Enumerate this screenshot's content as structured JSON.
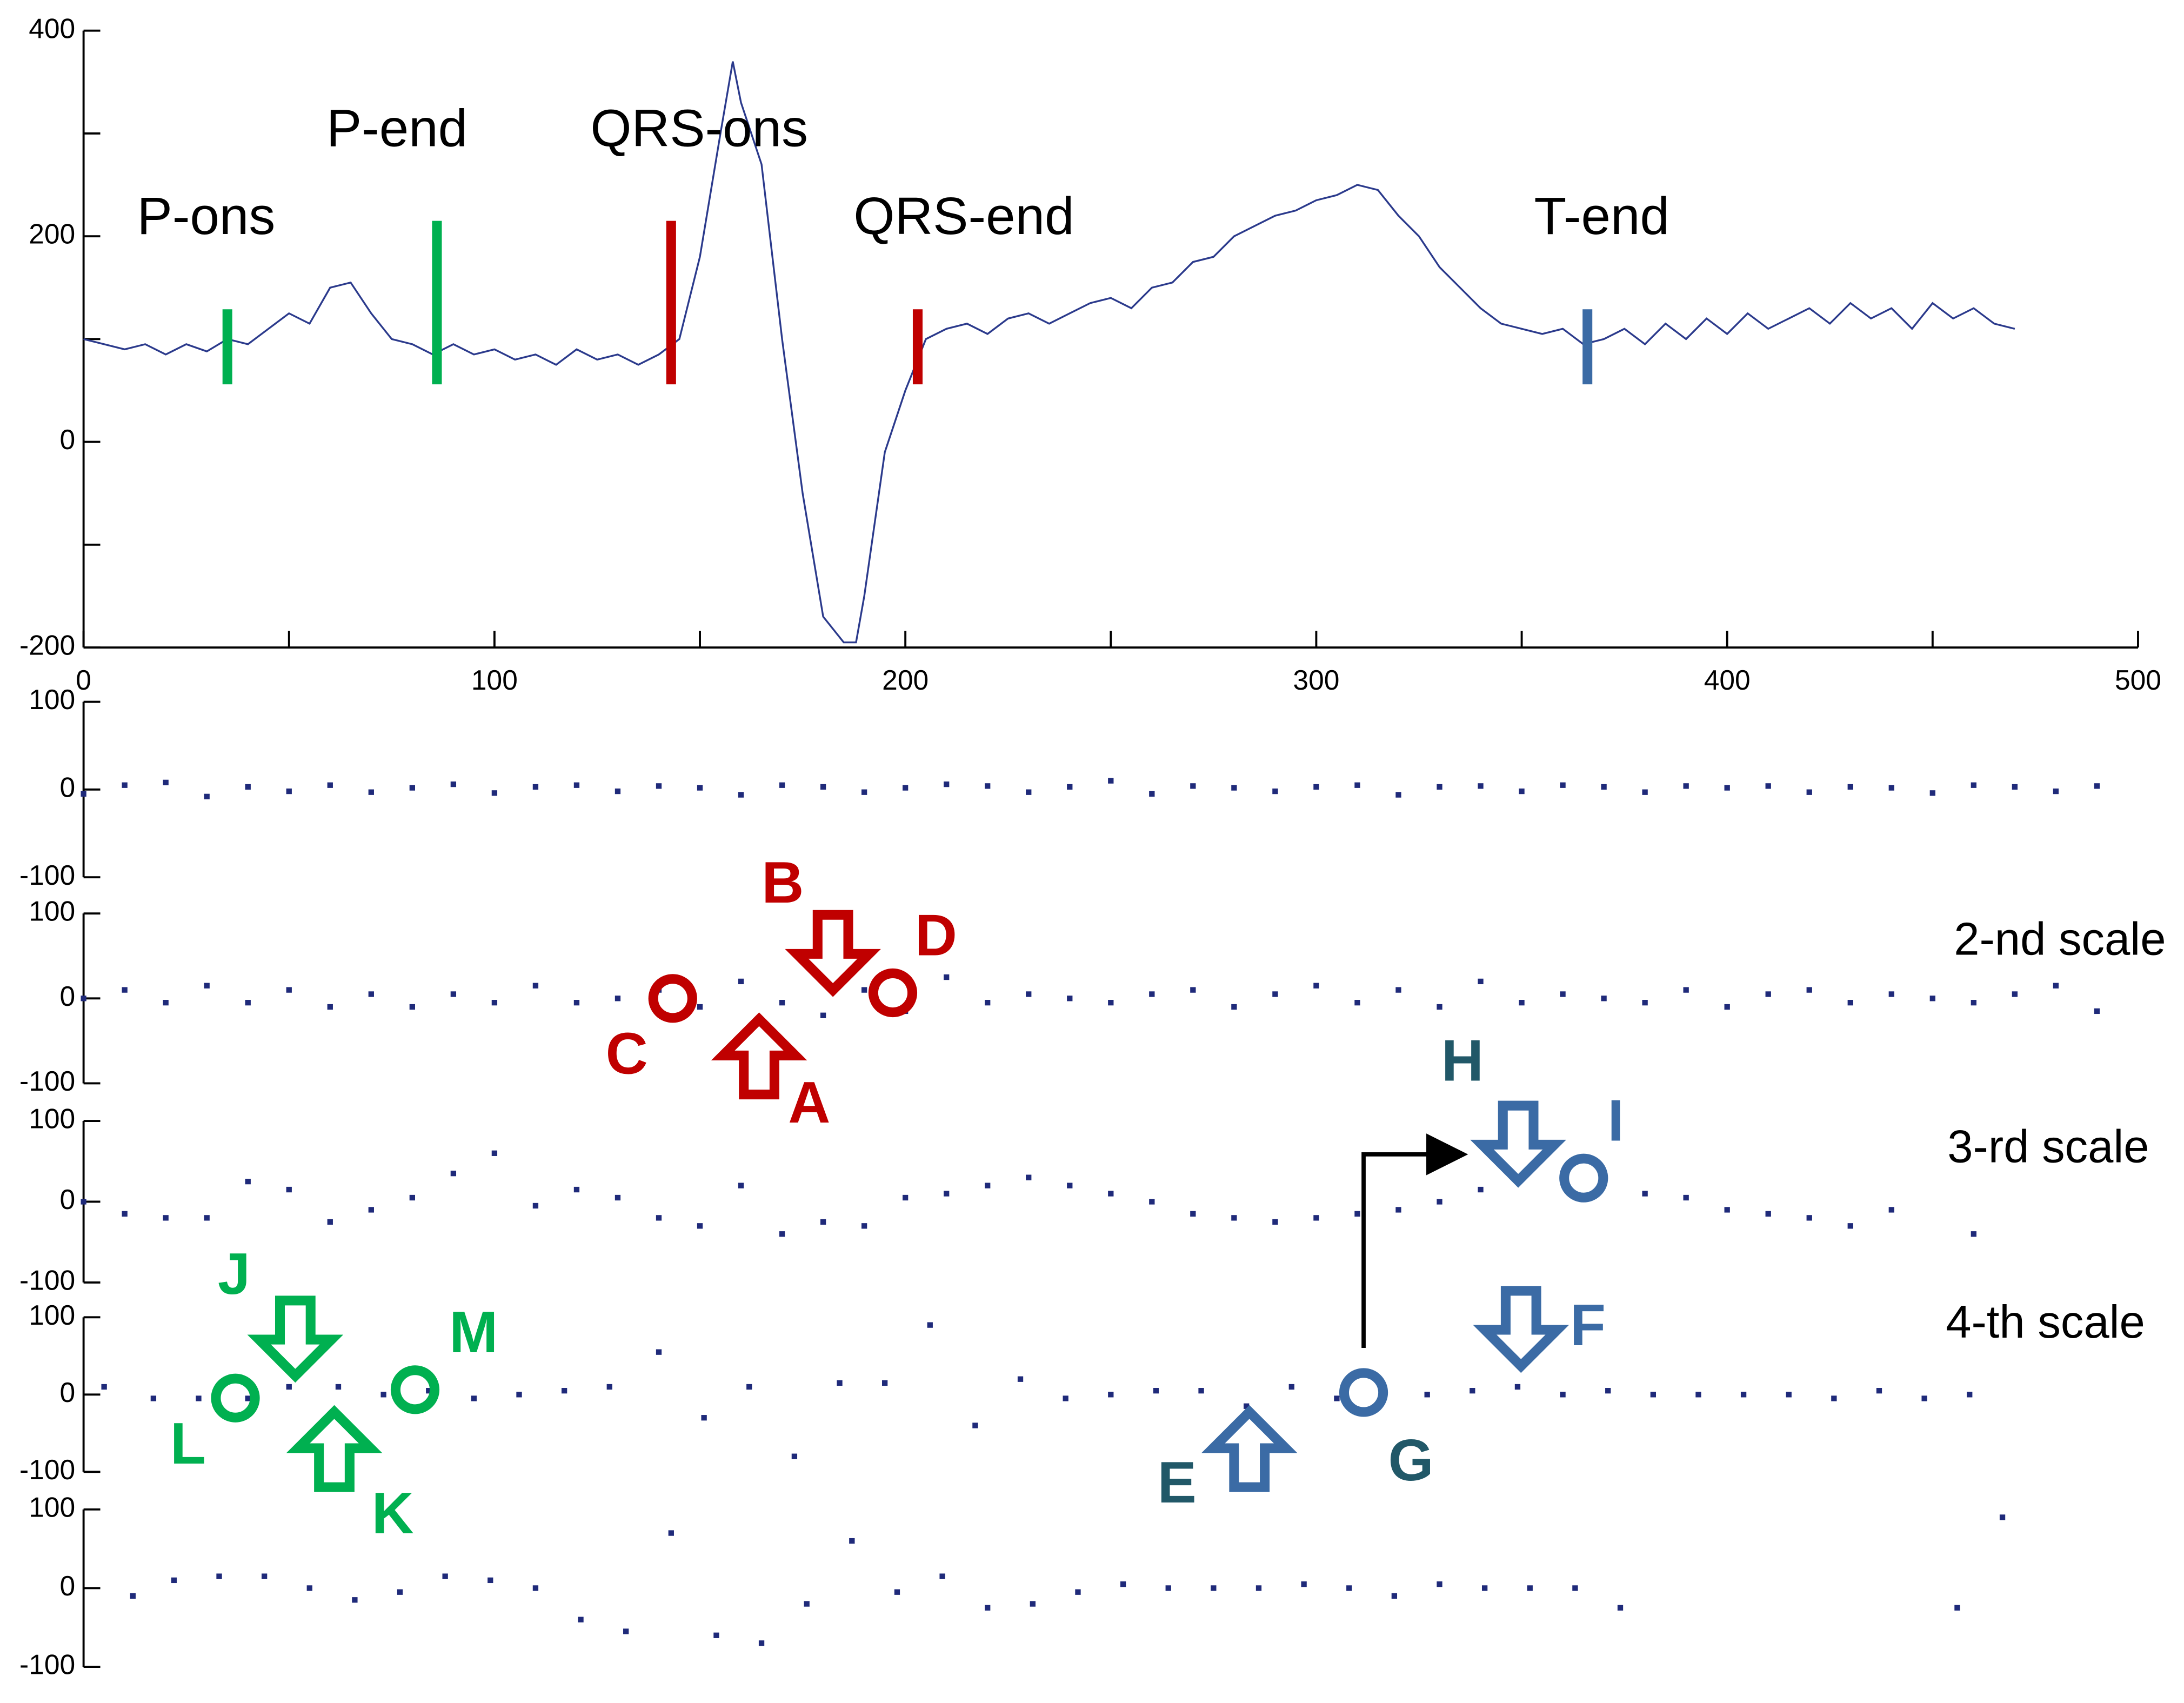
{
  "chart_data": [
    {
      "type": "line",
      "color": "#2b3a8c",
      "x": [
        0,
        5,
        10,
        15,
        20,
        25,
        30,
        35,
        40,
        45,
        50,
        55,
        60,
        65,
        70,
        75,
        80,
        85,
        90,
        95,
        100,
        105,
        110,
        115,
        120,
        125,
        130,
        135,
        140,
        145,
        150,
        155,
        158,
        160,
        165,
        170,
        175,
        180,
        185,
        188,
        190,
        195,
        200,
        205,
        210,
        215,
        220,
        225,
        230,
        235,
        240,
        245,
        250,
        255,
        260,
        265,
        270,
        275,
        280,
        285,
        290,
        295,
        300,
        305,
        310,
        315,
        320,
        325,
        330,
        335,
        340,
        345,
        350,
        355,
        360,
        365,
        370,
        375,
        380,
        385,
        390,
        395,
        400,
        405,
        410,
        415,
        420,
        425,
        430,
        435,
        440,
        445,
        450,
        455,
        460,
        465,
        470
      ],
      "values": [
        100,
        95,
        90,
        95,
        85,
        95,
        88,
        100,
        95,
        110,
        125,
        115,
        150,
        155,
        125,
        100,
        95,
        85,
        95,
        85,
        90,
        80,
        85,
        75,
        90,
        80,
        85,
        75,
        85,
        100,
        180,
        300,
        370,
        330,
        270,
        100,
        -50,
        -170,
        -195,
        -195,
        -150,
        -10,
        50,
        100,
        110,
        115,
        105,
        120,
        125,
        115,
        125,
        135,
        140,
        130,
        150,
        155,
        175,
        180,
        200,
        210,
        220,
        225,
        235,
        240,
        250,
        245,
        220,
        200,
        170,
        150,
        130,
        115,
        110,
        105,
        110,
        95,
        100,
        110,
        95,
        115,
        100,
        120,
        105,
        125,
        110,
        120,
        130,
        115,
        135,
        120,
        130,
        110,
        135,
        120,
        130,
        115,
        110
      ],
      "xlim": [
        0,
        500
      ],
      "ylim": [
        -200,
        400
      ],
      "xticks": [
        0,
        100,
        200,
        300,
        400,
        500
      ],
      "minor_xticks": [
        50,
        150,
        250,
        350,
        450
      ],
      "yticks": [
        -200,
        0,
        200,
        400
      ],
      "minor_yticks": [
        -100,
        100,
        300
      ],
      "markers": [
        {
          "label": "P-ons",
          "x": 35,
          "y": [
            56,
            129
          ],
          "color": "#00b050"
        },
        {
          "label": "P-end",
          "x": 86,
          "y": [
            56,
            215
          ],
          "color": "#00b050"
        },
        {
          "label": "QRS-ons",
          "x": 143,
          "y": [
            56,
            215
          ],
          "color": "#c00000"
        },
        {
          "label": "QRS-end",
          "x": 203,
          "y": [
            56,
            129
          ],
          "color": "#c00000"
        },
        {
          "label": "T-end",
          "x": 366,
          "y": [
            56,
            129
          ],
          "color": "#3b6ba5"
        }
      ]
    },
    {
      "type": "scatter",
      "color": "#1f2a7a",
      "x": [
        0,
        10,
        20,
        30,
        40,
        50,
        60,
        70,
        80,
        90,
        100,
        110,
        120,
        130,
        140,
        150,
        160,
        170,
        180,
        190,
        200,
        210,
        220,
        230,
        240,
        250,
        260,
        270,
        280,
        290,
        300,
        310,
        320,
        330,
        340,
        350,
        360,
        370,
        380,
        390,
        400,
        410,
        420,
        430,
        440,
        450,
        460,
        470,
        480,
        490
      ],
      "values": [
        -5,
        5,
        8,
        -8,
        3,
        -2,
        5,
        -3,
        2,
        6,
        -4,
        3,
        5,
        -2,
        4,
        2,
        -6,
        5,
        3,
        -3,
        2,
        6,
        4,
        -3,
        3,
        10,
        -5,
        4,
        2,
        -2,
        3,
        5,
        -6,
        3,
        4,
        -2,
        5,
        3,
        -3,
        4,
        2,
        4,
        -3,
        3,
        2,
        -4,
        5,
        3,
        -2,
        4
      ],
      "xlim": [
        0,
        500
      ],
      "ylim": [
        -100,
        100
      ],
      "yticks": [
        -100,
        0,
        100
      ]
    },
    {
      "type": "scatter",
      "color": "#1f2a7a",
      "title": "2-nd scale",
      "x": [
        0,
        10,
        20,
        30,
        40,
        50,
        60,
        70,
        80,
        90,
        100,
        110,
        120,
        130,
        140,
        150,
        160,
        170,
        180,
        190,
        200,
        210,
        220,
        230,
        240,
        250,
        260,
        270,
        280,
        290,
        300,
        310,
        320,
        330,
        340,
        350,
        360,
        370,
        380,
        390,
        400,
        410,
        420,
        430,
        440,
        450,
        460,
        470,
        480,
        490
      ],
      "values": [
        0,
        10,
        -5,
        15,
        -5,
        10,
        -10,
        5,
        -10,
        5,
        -5,
        15,
        -5,
        0,
        10,
        -10,
        20,
        -5,
        -20,
        10,
        -15,
        25,
        -5,
        5,
        0,
        -5,
        5,
        10,
        -10,
        5,
        15,
        -5,
        10,
        -10,
        20,
        -5,
        5,
        0,
        -5,
        10,
        -10,
        5,
        10,
        -5,
        5,
        0,
        -5,
        5,
        15,
        -15
      ],
      "xlim": [
        0,
        500
      ],
      "ylim": [
        -100,
        100
      ],
      "yticks": [
        -100,
        0,
        100
      ],
      "annotations": [
        "A",
        "B",
        "C",
        "D"
      ]
    },
    {
      "type": "scatter",
      "color": "#1f2a7a",
      "title": "3-rd scale",
      "x": [
        0,
        10,
        20,
        30,
        40,
        50,
        60,
        70,
        80,
        90,
        100,
        110,
        120,
        130,
        140,
        150,
        160,
        170,
        180,
        190,
        200,
        210,
        220,
        230,
        240,
        250,
        260,
        270,
        280,
        290,
        300,
        310,
        320,
        330,
        340,
        350,
        360,
        370,
        380,
        390,
        400,
        410,
        420,
        430,
        440,
        460
      ],
      "values": [
        0,
        -15,
        -20,
        -20,
        25,
        15,
        -25,
        -10,
        5,
        35,
        60,
        -5,
        15,
        5,
        -20,
        -30,
        20,
        -40,
        -25,
        -30,
        5,
        10,
        20,
        30,
        20,
        10,
        0,
        -15,
        -20,
        -25,
        -20,
        -15,
        -10,
        0,
        15,
        30,
        35,
        25,
        10,
        5,
        -10,
        -15,
        -20,
        -30,
        -10,
        -40
      ],
      "xlim": [
        0,
        500
      ],
      "ylim": [
        -100,
        100
      ],
      "yticks": [
        -100,
        0,
        100
      ],
      "annotations": [
        "H",
        "I"
      ]
    },
    {
      "type": "scatter",
      "color": "#1f2a7a",
      "title": "4-th scale",
      "x": [
        5,
        17,
        28,
        40,
        50,
        62,
        73,
        84,
        95,
        106,
        117,
        128,
        140,
        151,
        162,
        173,
        184,
        195,
        206,
        217,
        228,
        239,
        250,
        261,
        272,
        283,
        294,
        305,
        316,
        327,
        338,
        349,
        360,
        371,
        382,
        393,
        404,
        415,
        426,
        437,
        448,
        459
      ],
      "values": [
        10,
        -5,
        -5,
        -5,
        10,
        10,
        0,
        5,
        -5,
        0,
        5,
        10,
        55,
        -30,
        10,
        -80,
        15,
        15,
        90,
        -40,
        20,
        -5,
        0,
        5,
        5,
        -15,
        10,
        -5,
        0,
        0,
        5,
        10,
        0,
        5,
        0,
        0,
        0,
        0,
        -5,
        5,
        -5,
        0
      ],
      "xlim": [
        0,
        500
      ],
      "ylim": [
        -100,
        100
      ],
      "yticks": [
        -100,
        0,
        100
      ],
      "annotations": [
        "E",
        "F",
        "G",
        "J",
        "K",
        "L",
        "M"
      ]
    },
    {
      "type": "scatter",
      "color": "#1f2a7a",
      "x": [
        12,
        22,
        33,
        44,
        55,
        66,
        77,
        88,
        99,
        110,
        121,
        132,
        143,
        154,
        165,
        176,
        187,
        198,
        209,
        220,
        231,
        242,
        253,
        264,
        275,
        286,
        297,
        308,
        319,
        330,
        341,
        352,
        363,
        374,
        456,
        467
      ],
      "values": [
        -10,
        10,
        15,
        15,
        0,
        -15,
        -5,
        15,
        10,
        0,
        -40,
        -55,
        70,
        -60,
        -70,
        -20,
        60,
        -5,
        15,
        -25,
        -20,
        -5,
        5,
        0,
        0,
        0,
        5,
        0,
        -10,
        5,
        0,
        0,
        0,
        -25,
        -25,
        90
      ],
      "xlim": [
        0,
        500
      ],
      "ylim": [
        -100,
        100
      ],
      "yticks": [
        -100,
        0,
        100
      ]
    }
  ]
}
